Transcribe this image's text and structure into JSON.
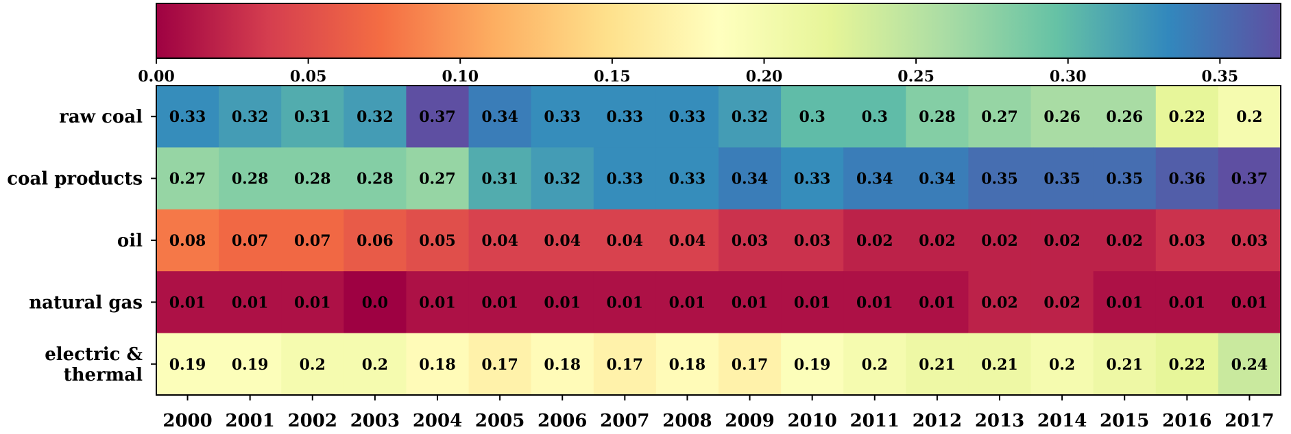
{
  "chart_data": {
    "type": "heatmap",
    "title": "",
    "xlabel": "",
    "ylabel": "",
    "colormap": "Spectral",
    "colorbar": {
      "placement": "top",
      "range": [
        0.0,
        0.37
      ],
      "ticks": [
        0.0,
        0.05,
        0.1,
        0.15,
        0.2,
        0.25,
        0.3,
        0.35
      ],
      "tick_labels": [
        "0.00",
        "0.05",
        "0.10",
        "0.15",
        "0.20",
        "0.25",
        "0.30",
        "0.35"
      ]
    },
    "x_categories": [
      "2000",
      "2001",
      "2002",
      "2003",
      "2004",
      "2005",
      "2006",
      "2007",
      "2008",
      "2009",
      "2010",
      "2011",
      "2012",
      "2013",
      "2014",
      "2015",
      "2016",
      "2017"
    ],
    "y_categories": [
      "raw coal",
      "coal products",
      "oil",
      "natural gas",
      "electric & thermal"
    ],
    "y_tick_lines": [
      [
        "raw coal"
      ],
      [
        "coal products"
      ],
      [
        "oil"
      ],
      [
        "natural gas"
      ],
      [
        "electric &",
        "thermal"
      ]
    ],
    "values": [
      [
        0.33,
        0.32,
        0.31,
        0.32,
        0.37,
        0.34,
        0.33,
        0.33,
        0.33,
        0.32,
        0.3,
        0.3,
        0.28,
        0.27,
        0.26,
        0.26,
        0.22,
        0.2
      ],
      [
        0.27,
        0.28,
        0.28,
        0.28,
        0.27,
        0.31,
        0.32,
        0.33,
        0.33,
        0.34,
        0.33,
        0.34,
        0.34,
        0.35,
        0.35,
        0.35,
        0.36,
        0.37
      ],
      [
        0.08,
        0.07,
        0.07,
        0.06,
        0.05,
        0.04,
        0.04,
        0.04,
        0.04,
        0.03,
        0.03,
        0.02,
        0.02,
        0.02,
        0.02,
        0.02,
        0.03,
        0.03
      ],
      [
        0.01,
        0.01,
        0.01,
        0.0,
        0.01,
        0.01,
        0.01,
        0.01,
        0.01,
        0.01,
        0.01,
        0.01,
        0.01,
        0.02,
        0.02,
        0.01,
        0.01,
        0.01
      ],
      [
        0.19,
        0.19,
        0.2,
        0.2,
        0.18,
        0.17,
        0.18,
        0.17,
        0.18,
        0.17,
        0.19,
        0.2,
        0.21,
        0.21,
        0.2,
        0.21,
        0.22,
        0.24
      ]
    ],
    "value_labels": [
      [
        "0.33",
        "0.32",
        "0.31",
        "0.32",
        "0.37",
        "0.34",
        "0.33",
        "0.33",
        "0.33",
        "0.32",
        "0.3",
        "0.3",
        "0.28",
        "0.27",
        "0.26",
        "0.26",
        "0.22",
        "0.2"
      ],
      [
        "0.27",
        "0.28",
        "0.28",
        "0.28",
        "0.27",
        "0.31",
        "0.32",
        "0.33",
        "0.33",
        "0.34",
        "0.33",
        "0.34",
        "0.34",
        "0.35",
        "0.35",
        "0.35",
        "0.36",
        "0.37"
      ],
      [
        "0.08",
        "0.07",
        "0.07",
        "0.06",
        "0.05",
        "0.04",
        "0.04",
        "0.04",
        "0.04",
        "0.03",
        "0.03",
        "0.02",
        "0.02",
        "0.02",
        "0.02",
        "0.02",
        "0.03",
        "0.03"
      ],
      [
        "0.01",
        "0.01",
        "0.01",
        "0.0",
        "0.01",
        "0.01",
        "0.01",
        "0.01",
        "0.01",
        "0.01",
        "0.01",
        "0.01",
        "0.01",
        "0.02",
        "0.02",
        "0.01",
        "0.01",
        "0.01"
      ],
      [
        "0.19",
        "0.19",
        "0.2",
        "0.2",
        "0.18",
        "0.17",
        "0.18",
        "0.17",
        "0.18",
        "0.17",
        "0.19",
        "0.2",
        "0.21",
        "0.21",
        "0.2",
        "0.21",
        "0.22",
        "0.24"
      ]
    ]
  }
}
